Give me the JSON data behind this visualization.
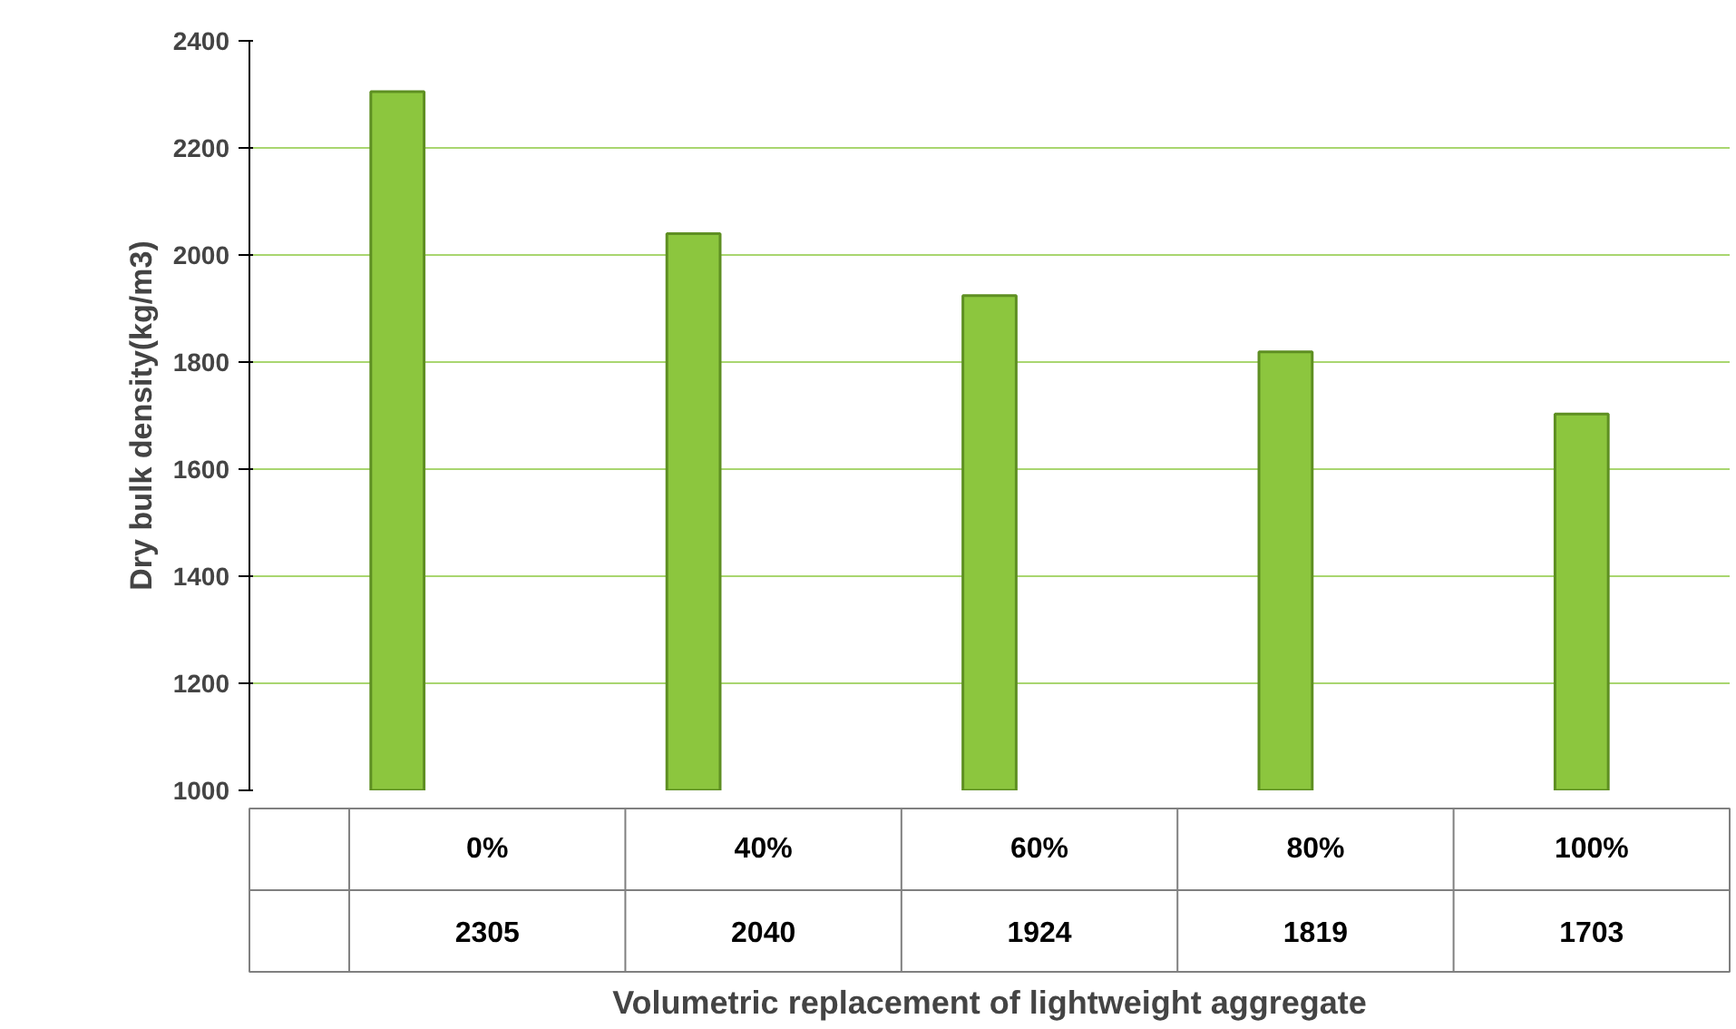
{
  "chart_data": {
    "type": "bar",
    "xlabel": "Volumetric replacement of lightweight aggregate",
    "ylabel": "Dry bulk density(kg/m3)",
    "categories": [
      "0%",
      "40%",
      "60%",
      "80%",
      "100%"
    ],
    "values": [
      2305,
      2040,
      1924,
      1819,
      1703
    ],
    "color": "#8cc63e",
    "ylim": [
      1000,
      2400
    ],
    "yticks": [
      1000,
      1200,
      1400,
      1600,
      1800,
      2000,
      2200,
      2400
    ],
    "grid": "y",
    "data_labels": true
  }
}
